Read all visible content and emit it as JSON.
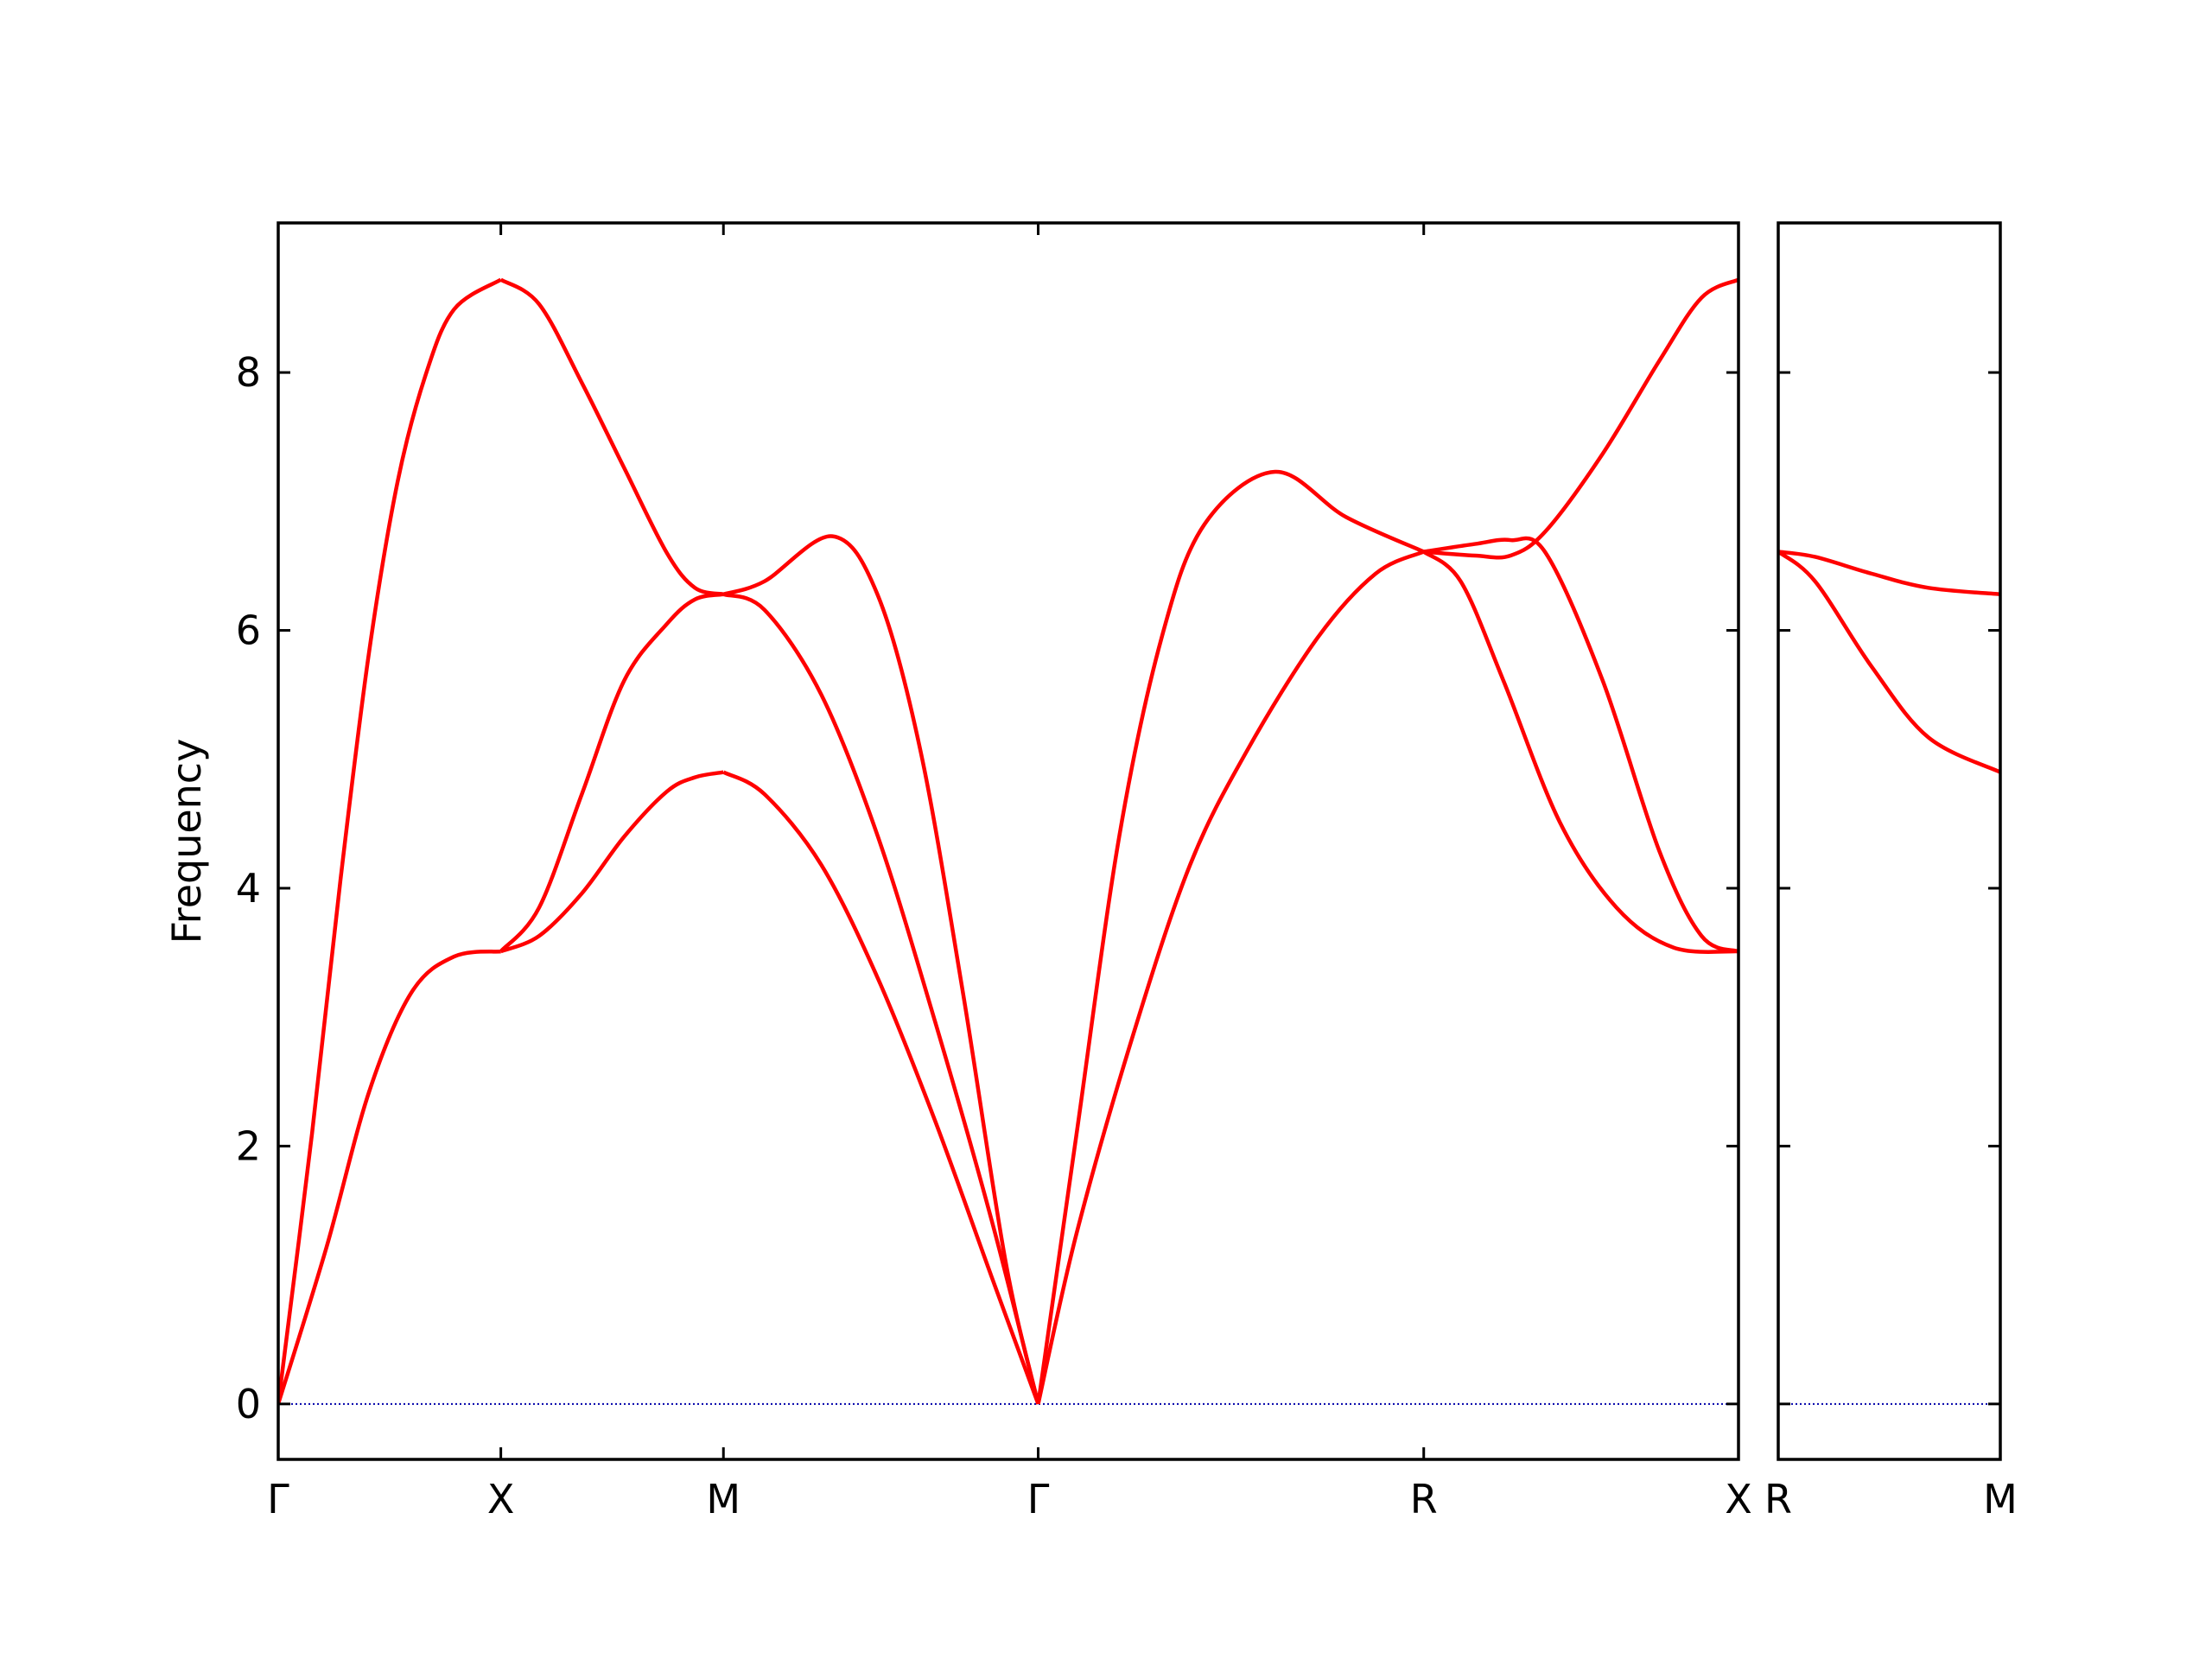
{
  "chart_data": [
    {
      "type": "line",
      "ylabel": "Frequency",
      "xlim": [
        0,
        3.28
      ],
      "ylim": [
        -0.43,
        9.16
      ],
      "xticks": [
        {
          "value": 0,
          "label": "Γ"
        },
        {
          "value": 0.5,
          "label": "X"
        },
        {
          "value": 1.0,
          "label": "M"
        },
        {
          "value": 1.707,
          "label": "Γ"
        },
        {
          "value": 2.573,
          "label": "R"
        },
        {
          "value": 3.28,
          "label": "X"
        }
      ],
      "yticks": [
        0,
        2,
        4,
        6,
        8
      ],
      "ytick_labels": true,
      "zero_line": 0,
      "zero_line_color": "#0000aa",
      "series": [
        {
          "color": "#ff0000",
          "x": [
            0,
            0.076,
            0.14,
            0.204,
            0.268,
            0.331,
            0.395,
            0.5
          ],
          "values": [
            0,
            2.1,
            4.07,
            5.83,
            7.15,
            7.98,
            8.49,
            8.72
          ]
        },
        {
          "color": "#ff0000",
          "x": [
            0,
            0.108,
            0.204,
            0.299,
            0.395,
            0.5
          ],
          "values": [
            0,
            1.21,
            2.42,
            3.19,
            3.47,
            3.51
          ]
        },
        {
          "color": "#ff0000",
          "x": [
            0.5,
            0.586,
            0.682,
            0.777,
            0.873,
            0.936,
            1.0
          ],
          "values": [
            8.72,
            8.53,
            7.92,
            7.26,
            6.6,
            6.33,
            6.28
          ]
        },
        {
          "color": "#ff0000",
          "x": [
            0.5,
            0.586,
            0.682,
            0.777,
            0.873,
            0.936,
            1.0
          ],
          "values": [
            3.51,
            3.85,
            4.73,
            5.61,
            6.05,
            6.24,
            6.28
          ]
        },
        {
          "color": "#ff0000",
          "x": [
            0.5,
            0.586,
            0.682,
            0.777,
            0.873,
            0.936,
            1.0
          ],
          "values": [
            3.51,
            3.63,
            3.96,
            4.4,
            4.75,
            4.86,
            4.9
          ]
        },
        {
          "color": "#ff0000",
          "x": [
            1.0,
            1.092,
            1.245,
            1.347,
            1.443,
            1.538,
            1.634,
            1.707
          ],
          "values": [
            6.28,
            6.38,
            6.73,
            6.27,
            5.06,
            3.19,
            1.1,
            0
          ]
        },
        {
          "color": "#ff0000",
          "x": [
            1.0,
            1.092,
            1.22,
            1.347,
            1.475,
            1.602,
            1.707
          ],
          "values": [
            6.28,
            6.16,
            5.5,
            4.4,
            2.97,
            1.43,
            0
          ]
        },
        {
          "color": "#ff0000",
          "x": [
            1.0,
            1.092,
            1.22,
            1.347,
            1.475,
            1.602,
            1.707
          ],
          "values": [
            4.9,
            4.73,
            4.18,
            3.3,
            2.2,
            0.99,
            0
          ]
        },
        {
          "color": "#ff0000",
          "x": [
            1.707,
            1.793,
            1.889,
            1.984,
            2.08,
            2.239,
            2.398,
            2.573
          ],
          "values": [
            0,
            2.09,
            4.4,
            5.94,
            6.82,
            7.23,
            6.88,
            6.61
          ]
        },
        {
          "color": "#ff0000",
          "x": [
            1.707,
            1.793,
            1.92,
            2.048,
            2.175,
            2.334,
            2.465,
            2.573
          ],
          "values": [
            0,
            1.32,
            2.86,
            4.18,
            5.06,
            5.94,
            6.44,
            6.61
          ]
        },
        {
          "color": "#ff0000",
          "x": [
            2.573,
            2.688,
            2.768,
            2.847,
            2.975,
            3.102,
            3.197,
            3.28
          ],
          "values": [
            6.61,
            6.58,
            6.58,
            6.77,
            7.37,
            8.09,
            8.58,
            8.72
          ]
        },
        {
          "color": "#ff0000",
          "x": [
            2.573,
            2.688,
            2.768,
            2.847,
            2.975,
            3.102,
            3.197,
            3.28
          ],
          "values": [
            6.61,
            6.67,
            6.7,
            6.6,
            5.61,
            4.29,
            3.63,
            3.51
          ]
        },
        {
          "color": "#ff0000",
          "x": [
            2.573,
            2.656,
            2.752,
            2.879,
            3.006,
            3.134,
            3.28
          ],
          "values": [
            6.61,
            6.38,
            5.61,
            4.51,
            3.85,
            3.54,
            3.51
          ]
        }
      ]
    },
    {
      "type": "line",
      "xlim": [
        3.28,
        3.78
      ],
      "ylim": [
        -0.43,
        9.16
      ],
      "xticks": [
        {
          "value": 3.28,
          "label": "R"
        },
        {
          "value": 3.78,
          "label": "M"
        }
      ],
      "yticks": [
        0,
        2,
        4,
        6,
        8
      ],
      "ytick_labels": false,
      "zero_line": 0,
      "zero_line_color": "#0000aa",
      "series": [
        {
          "color": "#ff0000",
          "x": [
            3.28,
            3.363,
            3.49,
            3.618,
            3.78
          ],
          "values": [
            6.61,
            6.57,
            6.44,
            6.33,
            6.28
          ]
        },
        {
          "color": "#ff0000",
          "x": [
            3.28,
            3.363,
            3.49,
            3.618,
            3.78
          ],
          "values": [
            6.61,
            6.38,
            5.72,
            5.17,
            4.9
          ]
        }
      ]
    }
  ]
}
